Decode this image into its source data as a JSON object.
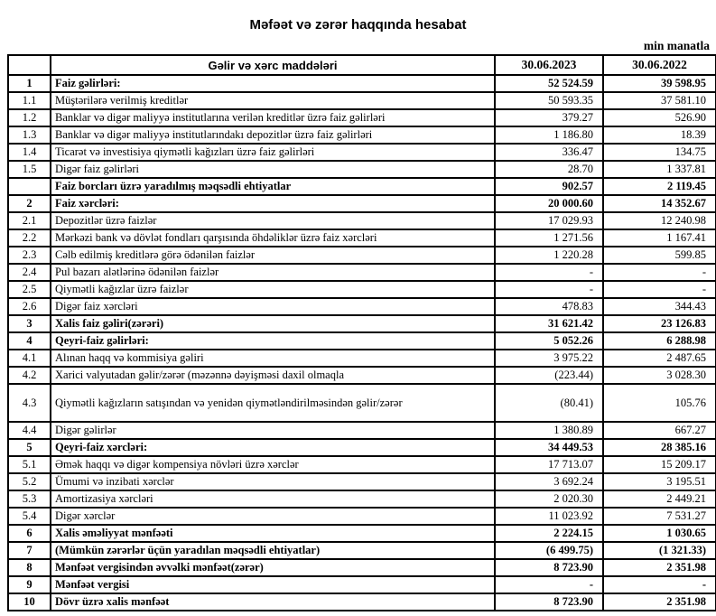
{
  "meta": {
    "title": "Məfəət və zərər haqqında hesabat",
    "unit_note": "min manatla"
  },
  "table": {
    "headers": {
      "num": "",
      "item": "Gəlir və xərc maddələri",
      "col1": "30.06.2023",
      "col2": "30.06.2022"
    },
    "rows": [
      {
        "num": "1",
        "item": "Faiz gəlirləri:",
        "v1": "52 524.59",
        "v2": "39 598.95",
        "bold": true
      },
      {
        "num": "1.1",
        "item": "Müştərilərə verilmiş kreditlər",
        "v1": "50 593.35",
        "v2": "37 581.10"
      },
      {
        "num": "1.2",
        "item": "Banklar və digər maliyyə institutlarına verilən kreditlər üzrə faiz gəlirləri",
        "v1": "379.27",
        "v2": "526.90"
      },
      {
        "num": "1.3",
        "item": "Banklar və digər maliyyə institutlarındakı depozitlər üzrə faiz gəlirləri",
        "v1": "1 186.80",
        "v2": "18.39"
      },
      {
        "num": "1.4",
        "item": "Ticarət və investisiya qiymətli kağızları üzrə faiz gəlirləri",
        "v1": "336.47",
        "v2": "134.75"
      },
      {
        "num": "1.5",
        "item": "Digər faiz gəlirləri",
        "v1": "28.70",
        "v2": "1 337.81"
      },
      {
        "num": "",
        "item": "Faiz borcları üzrə yaradılmış məqsədli ehtiyatlar",
        "v1": "902.57",
        "v2": "2 119.45",
        "bold": true
      },
      {
        "num": "2",
        "item": "Faiz xərcləri:",
        "v1": "20 000.60",
        "v2": "14 352.67",
        "bold": true
      },
      {
        "num": "2.1",
        "item": "Depozitlər üzrə faizlər",
        "v1": "17 029.93",
        "v2": "12 240.98"
      },
      {
        "num": "2.2",
        "item": "Mərkəzi bank və dövlət fondları qarşısında öhdəliklər üzrə faiz xərcləri",
        "v1": "1 271.56",
        "v2": "1 167.41"
      },
      {
        "num": "2.3",
        "item": "Cəlb edilmiş kreditlərə görə ödənilən faizlər",
        "v1": "1 220.28",
        "v2": "599.85"
      },
      {
        "num": "2.4",
        "item": "Pul bazarı alətlərinə ödənilən faizlər",
        "v1": "-",
        "v2": "-"
      },
      {
        "num": "2.5",
        "item": "Qiymətli kağızlar üzrə faizlər",
        "v1": "-",
        "v2": "-"
      },
      {
        "num": "2.6",
        "item": "Digər faiz xərcləri",
        "v1": "478.83",
        "v2": "344.43"
      },
      {
        "num": "3",
        "item": "Xalis faiz gəliri(zərəri)",
        "v1": "31 621.42",
        "v2": "23 126.83",
        "bold": true
      },
      {
        "num": "4",
        "item": "Qeyri-faiz gəlirləri:",
        "v1": "5 052.26",
        "v2": "6 288.98",
        "bold": true
      },
      {
        "num": "4.1",
        "item": "Alınan haqq və kommisiya gəliri",
        "v1": "3 975.22",
        "v2": "2 487.65"
      },
      {
        "num": "4.2",
        "item": "Xarici valyutadan gəlir/zərər (məzənnə dəyişməsi daxil olmaqla",
        "v1": "(223.44)",
        "v2": "3 028.30"
      },
      {
        "num": "4.3",
        "item": "Qiymətli kağızların satışından və yenidən qiymətləndirilməsindən gəlir/zərər",
        "v1": "(80.41)",
        "v2": "105.76",
        "tall": true
      },
      {
        "num": "4.4",
        "item": "Digər gəlirlər",
        "v1": "1 380.89",
        "v2": "667.27"
      },
      {
        "num": "5",
        "item": "Qeyri-faiz xərcləri:",
        "v1": "34 449.53",
        "v2": "28 385.16",
        "bold": true
      },
      {
        "num": "5.1",
        "item": "Əmək haqqı və digər kompensiya növləri üzrə xərclər",
        "v1": "17 713.07",
        "v2": "15 209.17"
      },
      {
        "num": "5.2",
        "item": "Ümumi və inzibati xərclər",
        "v1": "3 692.24",
        "v2": "3 195.51"
      },
      {
        "num": "5.3",
        "item": "Amortizasiya xərcləri",
        "v1": "2 020.30",
        "v2": "2 449.21"
      },
      {
        "num": "5.4",
        "item": "Digər xərclər",
        "v1": "11 023.92",
        "v2": "7 531.27"
      },
      {
        "num": "6",
        "item": "Xalis əməliyyat mənfəəti",
        "v1": "2 224.15",
        "v2": "1 030.65",
        "bold": true
      },
      {
        "num": "7",
        "item": "(Mümkün zərərlər üçün yaradılan məqsədli ehtiyatlar)",
        "v1": "(6 499.75)",
        "v2": "(1 321.33)",
        "bold": true
      },
      {
        "num": "8",
        "item": "Mənfəət vergisindən əvvəlki mənfəət(zərər)",
        "v1": "8 723.90",
        "v2": "2 351.98",
        "bold": true
      },
      {
        "num": "9",
        "item": "Mənfəət vergisi",
        "v1": "-",
        "v2": "-",
        "bold": true
      },
      {
        "num": "10",
        "item": "Dövr üzrə xalis mənfəət",
        "v1": "8 723.90",
        "v2": "2 351.98",
        "bold": true
      }
    ]
  }
}
